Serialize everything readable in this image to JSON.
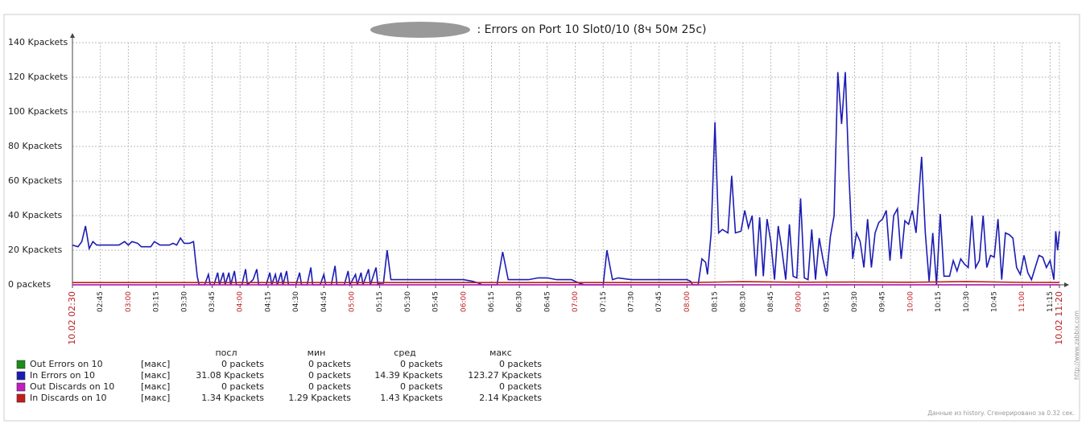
{
  "chart_data": {
    "type": "line",
    "title": ": Errors on Port 10 Slot0/10 (8ч 50м 25с)",
    "xlim": [
      "02:30",
      "11:20"
    ],
    "xticks": [
      {
        "value": "02:30",
        "label": "10.02 02:30"
      },
      "02:45",
      "03:00",
      "03:15",
      "03:30",
      "03:45",
      "04:00",
      "04:15",
      "04:30",
      "04:45",
      "05:00",
      "05:15",
      "05:30",
      "05:45",
      "06:00",
      "06:15",
      "06:30",
      "06:45",
      "07:00",
      "07:15",
      "07:30",
      "07:45",
      "08:00",
      "08:15",
      "08:30",
      "08:45",
      "09:00",
      "09:15",
      "09:30",
      "09:45",
      "10:00",
      "10:15",
      "10:30",
      "10:45",
      "11:00",
      "11:15",
      {
        "value": "11:20",
        "label": "10.02 11:20"
      }
    ],
    "ylim": [
      0,
      140
    ],
    "yticks": [
      {
        "value": 0,
        "label": "0 packets"
      },
      {
        "value": 20,
        "label": "20 Kpackets"
      },
      {
        "value": 40,
        "label": "40 Kpackets"
      },
      {
        "value": 60,
        "label": "60 Kpackets"
      },
      {
        "value": 80,
        "label": "80 Kpackets"
      },
      {
        "value": 100,
        "label": "100 Kpackets"
      },
      {
        "value": 120,
        "label": "120 Kpackets"
      },
      {
        "value": 140,
        "label": "140 Kpackets"
      }
    ],
    "grid": true,
    "legend_headers": [
      "посл",
      "мин",
      "сред",
      "макс"
    ],
    "series": [
      {
        "name": "Out Errors on 10",
        "color": "#1a8c1a",
        "func": "[макс]",
        "stats": [
          "0 packets",
          "0 packets",
          "0 packets",
          "0 packets"
        ],
        "x": [
          "02:30",
          "11:20"
        ],
        "values": [
          0,
          0
        ]
      },
      {
        "name": "In Errors on  10",
        "color": "#1c1cb4",
        "func": "[макс]",
        "stats": [
          "31.08 Kpackets",
          "0 packets",
          "14.39 Kpackets",
          "123.27 Kpackets"
        ],
        "x": [
          "02:30",
          "02:33",
          "02:35",
          "02:37",
          "02:39",
          "02:41",
          "02:43",
          "02:50",
          "02:55",
          "02:58",
          "03:00",
          "03:02",
          "03:05",
          "03:07",
          "03:12",
          "03:14",
          "03:17",
          "03:22",
          "03:24",
          "03:26",
          "03:28",
          "03:30",
          "03:33",
          "03:35",
          "03:37",
          "03:38",
          "03:41",
          "03:43",
          "03:44",
          "03:46",
          "03:48",
          "03:49",
          "03:51",
          "03:52",
          "03:54",
          "03:55",
          "03:57",
          "03:58",
          "04:01",
          "04:03",
          "04:04",
          "04:07",
          "04:09",
          "04:10",
          "04:14",
          "04:16",
          "04:17",
          "04:19",
          "04:20",
          "04:22",
          "04:23",
          "04:25",
          "04:26",
          "04:30",
          "04:32",
          "04:33",
          "04:36",
          "04:38",
          "04:39",
          "04:43",
          "04:45",
          "04:46",
          "04:49",
          "04:51",
          "04:52",
          "04:56",
          "04:58",
          "04:59",
          "05:02",
          "05:03",
          "05:05",
          "05:06",
          "05:09",
          "05:10",
          "05:13",
          "05:14",
          "05:15",
          "05:17",
          "05:19",
          "05:21",
          "05:30",
          "05:45",
          "05:55",
          "06:00",
          "06:05",
          "06:08",
          "06:10",
          "06:18",
          "06:21",
          "06:24",
          "06:30",
          "06:35",
          "06:40",
          "06:45",
          "06:50",
          "06:58",
          "07:00",
          "07:02",
          "07:05",
          "07:15",
          "07:17",
          "07:20",
          "07:23",
          "07:30",
          "07:40",
          "07:50",
          "08:00",
          "08:02",
          "08:03",
          "08:06",
          "08:08",
          "08:10",
          "08:11",
          "08:13",
          "08:15",
          "08:17",
          "08:19",
          "08:22",
          "08:24",
          "08:26",
          "08:29",
          "08:31",
          "08:33",
          "08:35",
          "08:37",
          "08:39",
          "08:41",
          "08:43",
          "08:45",
          "08:47",
          "08:49",
          "08:51",
          "08:53",
          "08:55",
          "08:57",
          "08:59",
          "09:01",
          "09:03",
          "09:05",
          "09:07",
          "09:09",
          "09:11",
          "09:13",
          "09:15",
          "09:17",
          "09:19",
          "09:21",
          "09:23",
          "09:25",
          "09:27",
          "09:29",
          "09:31",
          "09:33",
          "09:35",
          "09:37",
          "09:39",
          "09:41",
          "09:43",
          "09:45",
          "09:47",
          "09:49",
          "09:51",
          "09:53",
          "09:55",
          "09:57",
          "09:59",
          "10:01",
          "10:03",
          "10:06",
          "10:08",
          "10:10",
          "10:12",
          "10:14",
          "10:16",
          "10:18",
          "10:21",
          "10:23",
          "10:25",
          "10:27",
          "10:29",
          "10:31",
          "10:33",
          "10:35",
          "10:37",
          "10:39",
          "10:41",
          "10:43",
          "10:45",
          "10:47",
          "10:49",
          "10:51",
          "10:53",
          "10:55",
          "10:57",
          "10:59",
          "11:01",
          "11:03",
          "11:05",
          "11:07",
          "11:09",
          "11:11",
          "11:13",
          "11:15",
          "11:17",
          "11:18",
          "11:19",
          "11:20"
        ],
        "values": [
          23,
          22,
          25,
          34,
          21,
          25,
          23,
          23,
          23,
          25,
          23,
          25,
          24,
          22,
          22,
          25,
          23,
          23,
          24,
          23,
          27,
          24,
          24,
          25,
          5,
          0,
          0,
          6,
          0,
          0,
          7,
          0,
          7,
          0,
          7,
          0,
          8,
          0,
          0,
          9,
          0,
          3,
          9,
          0,
          0,
          7,
          0,
          6,
          0,
          7,
          0,
          8,
          0,
          0,
          7,
          0,
          0,
          10,
          0,
          0,
          6,
          0,
          0,
          11,
          0,
          0,
          8,
          0,
          6,
          0,
          7,
          0,
          9,
          0,
          10,
          0,
          1,
          1,
          20,
          3,
          3,
          3,
          3,
          3,
          2,
          1,
          0,
          0,
          19,
          3,
          3,
          3,
          4,
          4,
          3,
          3,
          2,
          1,
          0,
          0,
          20,
          3,
          4,
          3,
          3,
          3,
          3,
          2,
          0,
          0,
          15,
          13,
          6,
          30,
          94,
          30,
          32,
          30,
          63,
          30,
          31,
          43,
          33,
          40,
          5,
          39,
          5,
          38,
          25,
          3,
          34,
          20,
          3,
          35,
          5,
          4,
          50,
          4,
          3,
          32,
          3,
          27,
          15,
          5,
          28,
          40,
          123,
          93,
          123,
          63,
          15,
          30,
          25,
          10,
          38,
          10,
          30,
          36,
          38,
          43,
          14,
          40,
          44,
          15,
          37,
          35,
          43,
          30,
          74,
          30,
          2,
          30,
          0,
          41,
          5,
          5,
          14,
          8,
          15,
          12,
          10,
          40,
          10,
          14,
          40,
          10,
          17,
          16,
          38,
          3,
          30,
          29,
          27,
          10,
          6,
          17,
          7,
          3,
          10,
          17,
          16,
          10,
          14,
          3,
          31,
          20,
          31
        ]
      },
      {
        "name": "Out Discards on 10",
        "color": "#c41cc4",
        "func": "[макс]",
        "stats": [
          "0 packets",
          "0 packets",
          "0 packets",
          "0 packets"
        ],
        "x": [
          "02:30",
          "11:20"
        ],
        "values": [
          0,
          0
        ]
      },
      {
        "name": "In Discards on 10",
        "color": "#c41c1c",
        "func": "[макс]",
        "stats": [
          "1.34 Kpackets",
          "1.29 Kpackets",
          "1.43 Kpackets",
          "2.14 Kpackets"
        ],
        "x": [
          "02:30",
          "05:00",
          "08:00",
          "08:30",
          "09:00",
          "09:30",
          "10:00",
          "10:30",
          "11:00",
          "11:20"
        ],
        "values": [
          1.3,
          1.3,
          1.3,
          1.8,
          1.5,
          1.6,
          1.5,
          1.9,
          1.4,
          1.34
        ]
      }
    ],
    "footer": "Данные из history. Сгенерировано за 0.32 сек.",
    "watermark": "http://www.zabbix.com"
  }
}
